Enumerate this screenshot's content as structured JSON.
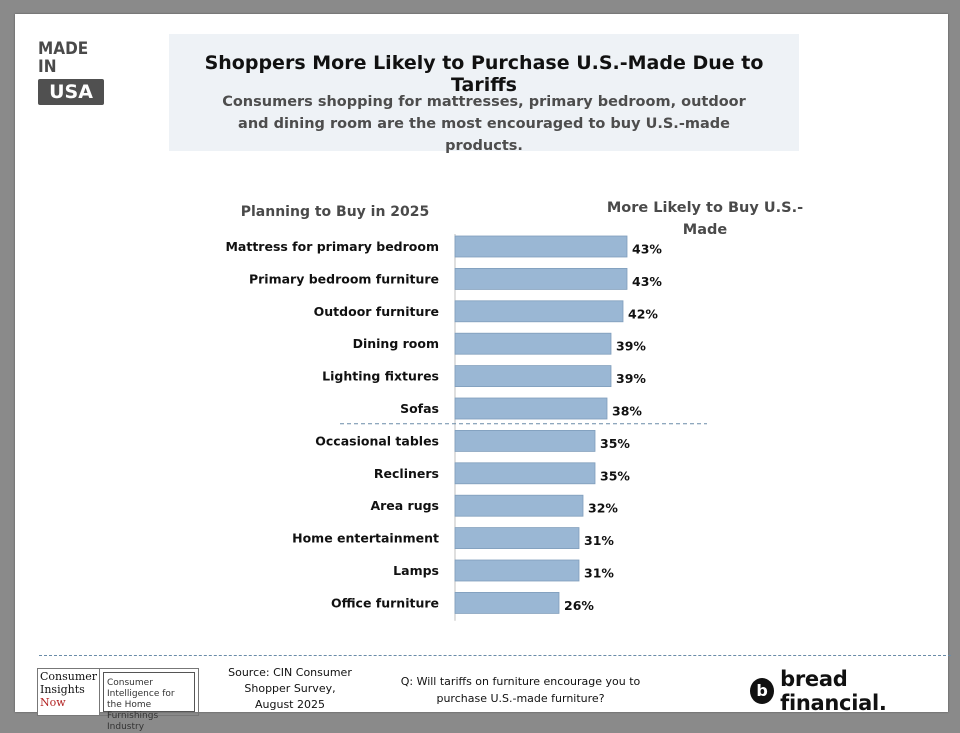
{
  "logo": {
    "line1": "MADE IN",
    "line2": "USA"
  },
  "header": {
    "title": "Shoppers More Likely to Purchase U.S.-Made Due to Tariffs",
    "subtitle": "Consumers shopping for mattresses, primary bedroom, outdoor and dining room are the most encouraged to buy U.S.-made products."
  },
  "columns": {
    "left": "Planning to Buy in 2025",
    "right": "More Likely to Buy U.S.-Made"
  },
  "chart_data": {
    "type": "bar",
    "orientation": "horizontal",
    "categories": [
      "Mattress for primary bedroom",
      "Primary bedroom furniture",
      "Outdoor furniture",
      "Dining room",
      "Lighting fixtures",
      "Sofas",
      "Occasional tables",
      "Recliners",
      "Area rugs",
      "Home entertainment",
      "Lamps",
      "Office furniture"
    ],
    "values": [
      43,
      43,
      42,
      39,
      39,
      38,
      35,
      35,
      32,
      31,
      31,
      26
    ],
    "data_labels": [
      "43%",
      "43%",
      "42%",
      "39%",
      "39%",
      "38%",
      "35%",
      "35%",
      "32%",
      "31%",
      "31%",
      "26%"
    ],
    "title": "",
    "xlabel": "",
    "ylabel": "",
    "xlim": [
      0,
      55
    ],
    "divider_after_index": 5,
    "bar_color": "#9ab7d4",
    "bar_border_color": "#7f9dbb",
    "grid": false
  },
  "footer": {
    "cin_logo": {
      "line1": "Consumer",
      "line2": "Insights",
      "line3": "Now",
      "tagline": "Consumer Intelligence for the Home Furnishings Industry"
    },
    "source": "Source: CIN Consumer Shopper Survey, August 2025",
    "question": "Q: Will tariffs on furniture encourage you to purchase U.S.-made furniture?",
    "brand": "bread financial."
  }
}
